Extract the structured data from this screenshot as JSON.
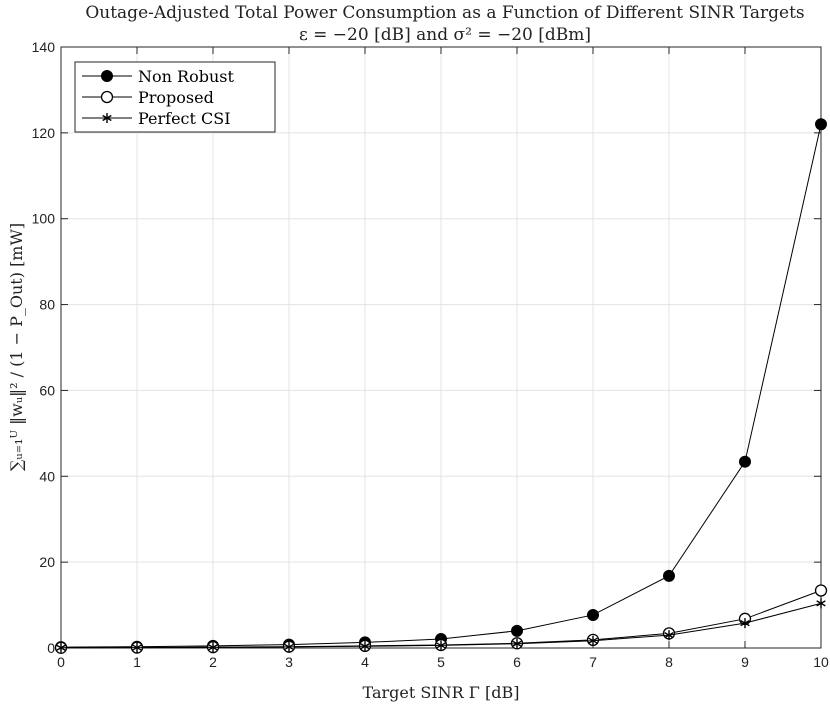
{
  "chart_data": {
    "type": "line",
    "title": "Outage-Adjusted Total Power Consumption as a Function of Different SINR Targets",
    "subtitle": "ε = −20 [dB] and σ² = −20 [dBm]",
    "xlabel": "Target SINR Γ [dB]",
    "ylabel": "∑ᵤ₌₁ᵁ ‖wᵤ‖² / (1 − P_Out) [mW]",
    "xlim": [
      0,
      10
    ],
    "ylim": [
      0,
      140
    ],
    "x_ticks": [
      0,
      1,
      2,
      3,
      4,
      5,
      6,
      7,
      8,
      9,
      10
    ],
    "y_ticks": [
      0,
      20,
      40,
      60,
      80,
      100,
      120,
      140
    ],
    "grid": true,
    "legend_position": "top-left",
    "x": [
      0,
      1,
      2,
      3,
      4,
      5,
      6,
      7,
      8,
      9,
      10
    ],
    "series": [
      {
        "name": "Non Robust",
        "marker": "filled-circle",
        "color": "#000000",
        "values": [
          0.2,
          0.3,
          0.5,
          0.8,
          1.3,
          2.1,
          4.0,
          7.7,
          16.8,
          43.4,
          122.0
        ]
      },
      {
        "name": "Proposed",
        "marker": "open-circle",
        "color": "#000000",
        "values": [
          0.05,
          0.1,
          0.2,
          0.3,
          0.5,
          0.7,
          1.1,
          1.9,
          3.4,
          6.8,
          13.4
        ]
      },
      {
        "name": "Perfect CSI",
        "marker": "asterisk",
        "color": "#000000",
        "values": [
          0.05,
          0.1,
          0.15,
          0.25,
          0.4,
          0.6,
          1.0,
          1.7,
          3.0,
          5.8,
          10.4
        ]
      }
    ]
  }
}
